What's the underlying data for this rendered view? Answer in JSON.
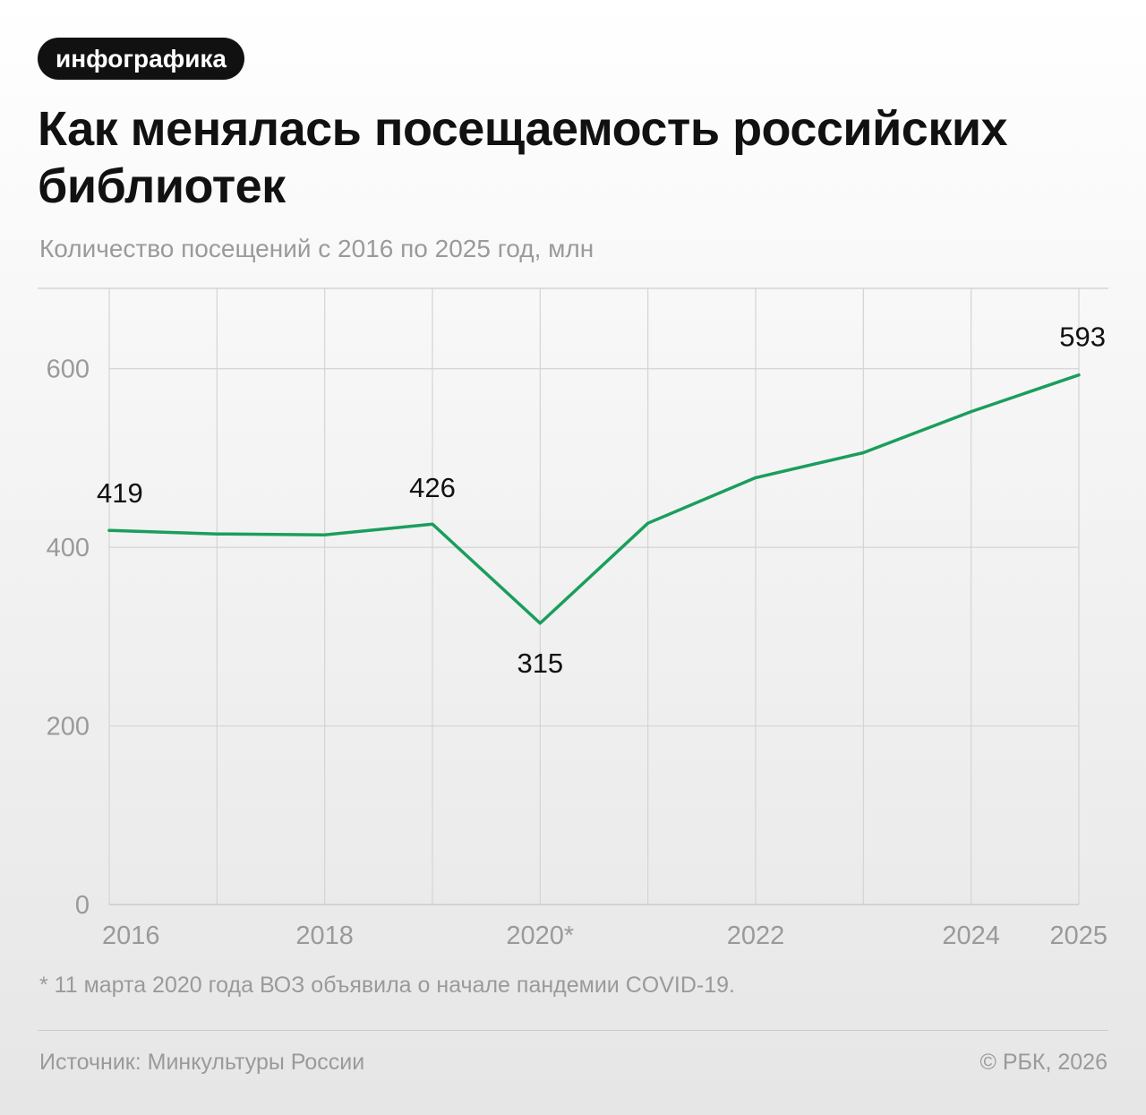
{
  "badge": "инфографика",
  "title": "Как менялась посещаемость российских библиотек",
  "subtitle": "Количество посещений с 2016 по 2025 год, млн",
  "chart_data": {
    "type": "line",
    "x": [
      2016,
      2017,
      2018,
      2019,
      2020,
      2021,
      2022,
      2023,
      2024,
      2025
    ],
    "x_tick_labels": [
      "2016",
      "",
      "2018",
      "",
      "2020*",
      "",
      "2022",
      "",
      "2024",
      "2025"
    ],
    "series": [
      {
        "values": [
          419,
          415,
          414,
          426,
          315,
          427,
          478,
          506,
          552,
          593
        ],
        "color": "#1a9e5c"
      }
    ],
    "data_labels": [
      {
        "index": 0,
        "text": "419",
        "position": "above"
      },
      {
        "index": 3,
        "text": "426",
        "position": "above"
      },
      {
        "index": 4,
        "text": "315",
        "position": "below"
      },
      {
        "index": 9,
        "text": "593",
        "position": "above"
      }
    ],
    "y_ticks": [
      0,
      200,
      400,
      600
    ],
    "ylim": [
      0,
      690
    ],
    "grid": true
  },
  "footnote": "* 11 марта 2020 года ВОЗ объявила о начале пандемии COVID-19.",
  "source": "Источник: Минкультуры России",
  "copyright": "© РБК, 2026"
}
